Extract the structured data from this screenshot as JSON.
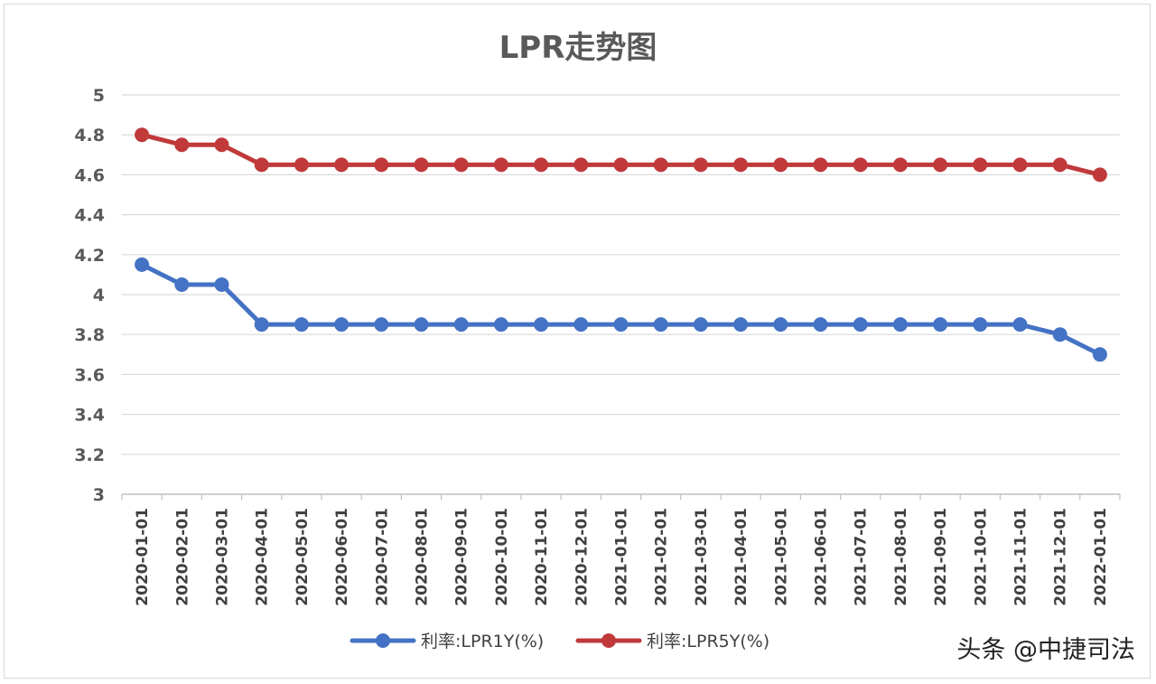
{
  "chart_data": {
    "type": "line",
    "title": "LPR走势图",
    "xlabel": "",
    "ylabel": "",
    "ylim": [
      3,
      5
    ],
    "yticks": [
      3,
      3.2,
      3.4,
      3.6,
      3.8,
      4,
      4.2,
      4.4,
      4.6,
      4.8,
      5
    ],
    "ytick_labels": [
      "3",
      "3.2",
      "3.4",
      "3.6",
      "3.8",
      "4",
      "4.2",
      "4.4",
      "4.6",
      "4.8",
      "5"
    ],
    "grid": true,
    "legend_position": "bottom",
    "categories": [
      "2020-01-01",
      "2020-02-01",
      "2020-03-01",
      "2020-04-01",
      "2020-05-01",
      "2020-06-01",
      "2020-07-01",
      "2020-08-01",
      "2020-09-01",
      "2020-10-01",
      "2020-11-01",
      "2020-12-01",
      "2021-01-01",
      "2021-02-01",
      "2021-03-01",
      "2021-04-01",
      "2021-05-01",
      "2021-06-01",
      "2021-07-01",
      "2021-08-01",
      "2021-09-01",
      "2021-10-01",
      "2021-11-01",
      "2021-12-01",
      "2022-01-01"
    ],
    "series": [
      {
        "name": "利率:LPR1Y(%)",
        "color": "#4472c4",
        "values": [
          4.15,
          4.05,
          4.05,
          3.85,
          3.85,
          3.85,
          3.85,
          3.85,
          3.85,
          3.85,
          3.85,
          3.85,
          3.85,
          3.85,
          3.85,
          3.85,
          3.85,
          3.85,
          3.85,
          3.85,
          3.85,
          3.85,
          3.85,
          3.8,
          3.7
        ]
      },
      {
        "name": "利率:LPR5Y(%)",
        "color": "#c0393b",
        "values": [
          4.8,
          4.75,
          4.75,
          4.65,
          4.65,
          4.65,
          4.65,
          4.65,
          4.65,
          4.65,
          4.65,
          4.65,
          4.65,
          4.65,
          4.65,
          4.65,
          4.65,
          4.65,
          4.65,
          4.65,
          4.65,
          4.65,
          4.65,
          4.65,
          4.6
        ]
      }
    ]
  },
  "watermark": {
    "text": "头条 @中捷司法"
  }
}
